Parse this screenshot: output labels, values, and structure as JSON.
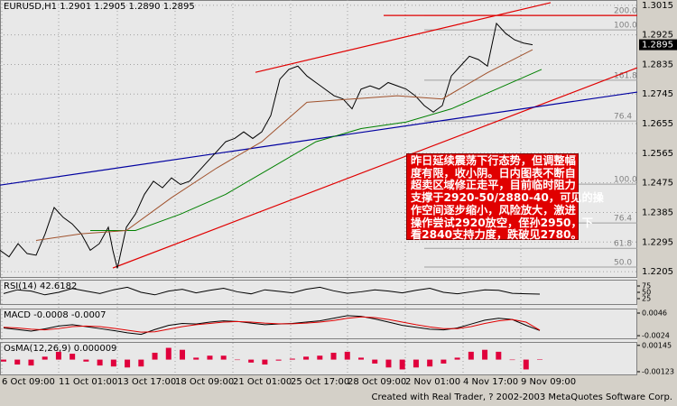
{
  "chart_data": [
    {
      "type": "line",
      "title": "EURUSD,H1  1.2901 1.2905 1.2890 1.2895",
      "current_price": 1.2895,
      "xlim": [
        0,
        706
      ],
      "ylim": [
        1.2186,
        1.3031
      ],
      "xticks": [
        {
          "value": 2,
          "label": "6 Oct 09:00"
        },
        {
          "value": 65,
          "label": "11 Oct 01:00"
        },
        {
          "value": 130,
          "label": "13 Oct 17:00"
        },
        {
          "value": 194,
          "label": "18 Oct 09:00"
        },
        {
          "value": 258,
          "label": "21 Oct 01:00"
        },
        {
          "value": 322,
          "label": "25 Oct 17:00"
        },
        {
          "value": 385,
          "label": "28 Oct 09:00"
        },
        {
          "value": 449,
          "label": "2 Nov 01:00"
        },
        {
          "value": 513,
          "label": "4 Nov 17:00"
        },
        {
          "value": 577,
          "label": "9 Nov 09:00"
        }
      ],
      "yticks": [
        1.3015,
        1.2925,
        1.2835,
        1.2745,
        1.2655,
        1.2565,
        1.2475,
        1.2385,
        1.2295,
        1.2205
      ],
      "grid": true,
      "series": [
        {
          "color": "#000000",
          "x": [
            0,
            10,
            20,
            30,
            40,
            50,
            60,
            70,
            80,
            90,
            100,
            110,
            120,
            125,
            130,
            140,
            150,
            160,
            170,
            180,
            190,
            200,
            210,
            220,
            230,
            240,
            250,
            260,
            270,
            280,
            290,
            300,
            310,
            320,
            330,
            340,
            350,
            360,
            370,
            380,
            390,
            400,
            410,
            420,
            430,
            440,
            450,
            460,
            470,
            480,
            490,
            500,
            510,
            520,
            530,
            540,
            550,
            560,
            570,
            580,
            590
          ],
          "values": [
            1.227,
            1.225,
            1.229,
            1.226,
            1.2255,
            1.232,
            1.24,
            1.237,
            1.235,
            1.232,
            1.227,
            1.229,
            1.234,
            1.227,
            1.2215,
            1.234,
            1.238,
            1.244,
            1.248,
            1.246,
            1.249,
            1.247,
            1.248,
            1.251,
            1.254,
            1.257,
            1.26,
            1.261,
            1.263,
            1.261,
            1.263,
            1.268,
            1.279,
            1.282,
            1.283,
            1.28,
            1.278,
            1.276,
            1.274,
            1.273,
            1.27,
            1.276,
            1.277,
            1.276,
            1.278,
            1.277,
            1.276,
            1.274,
            1.271,
            1.269,
            1.271,
            1.28,
            1.283,
            1.286,
            1.285,
            1.283,
            1.296,
            1.293,
            1.291,
            1.29,
            1.2895
          ]
        },
        {
          "color": "#008000",
          "x": [
            100,
            150,
            200,
            250,
            300,
            350,
            400,
            450,
            500,
            550,
            600
          ],
          "values": [
            1.233,
            1.233,
            1.238,
            1.244,
            1.252,
            1.26,
            1.264,
            1.266,
            1.27,
            1.276,
            1.282
          ]
        },
        {
          "color": "#a0522d",
          "x": [
            40,
            90,
            140,
            190,
            240,
            290,
            340,
            390,
            440,
            490,
            540,
            590
          ],
          "values": [
            1.23,
            1.232,
            1.233,
            1.243,
            1.252,
            1.26,
            1.272,
            1.273,
            1.274,
            1.273,
            1.281,
            1.288
          ]
        }
      ],
      "trendlines": [
        {
          "color": "#e00000",
          "x": [
            283,
            610
          ],
          "y": [
            1.2811,
            1.3023
          ]
        },
        {
          "color": "#e00000",
          "x": [
            125,
            706
          ],
          "y": [
            1.2216,
            1.2825
          ]
        },
        {
          "color": "#e00000",
          "x": [
            425,
            706
          ],
          "y": [
            1.2984,
            1.2984
          ]
        },
        {
          "color": "#0000a0",
          "x": [
            0,
            706
          ],
          "y": [
            1.2468,
            1.2751
          ]
        }
      ],
      "fib_levels": [
        {
          "label": "200.0",
          "price": 1.2984
        },
        {
          "label": "100.0",
          "price": 1.294
        },
        {
          "label": "161.8",
          "price": 1.2787
        },
        {
          "label": "76.4",
          "price": 1.2663
        },
        {
          "label": "100.0",
          "price": 1.2471
        },
        {
          "label": "76.4",
          "price": 1.2353
        },
        {
          "label": "61.8",
          "price": 1.2276
        },
        {
          "label": "50.0",
          "price": 1.2219
        }
      ]
    },
    {
      "type": "line",
      "title": "RSI(14)  42.6182",
      "ylim": [
        0,
        100
      ],
      "yticks": [
        75,
        50,
        25
      ],
      "series": [
        {
          "color": "#000000",
          "values": [
            45,
            60,
            55,
            40,
            50,
            65,
            55,
            45,
            60,
            70,
            50,
            40,
            55,
            62,
            48,
            58,
            66,
            52,
            44,
            60,
            54,
            48,
            62,
            70,
            56,
            46,
            52,
            60,
            55,
            48,
            58,
            66,
            50,
            44,
            52,
            60,
            58,
            46,
            44,
            43
          ]
        }
      ]
    },
    {
      "type": "line",
      "title": "MACD -0.0008 -0.0007",
      "ylim": [
        -0.0035,
        0.006
      ],
      "yticks": [
        0.0046,
        -0.0024
      ],
      "series": [
        {
          "color": "#000000",
          "values": [
            0,
            -0.0005,
            -0.001,
            -0.0003,
            0.0006,
            0.001,
            0.0004,
            -0.0002,
            -0.0008,
            -0.0015,
            -0.002,
            -0.0005,
            0.0008,
            0.0014,
            0.0012,
            0.0018,
            0.0022,
            0.002,
            0.0015,
            0.001,
            0.0012,
            0.0014,
            0.0018,
            0.0022,
            0.003,
            0.0038,
            0.0036,
            0.0028,
            0.0018,
            0.0008,
            0.0002,
            -0.0004,
            -0.0006,
            0,
            0.0012,
            0.0024,
            0.003,
            0.0026,
            0.0008,
            -0.0008
          ]
        },
        {
          "color": "#e00000",
          "values": [
            0.0002,
            0,
            -0.0004,
            -0.0006,
            -0.0002,
            0.0004,
            0.0006,
            0.0004,
            -0.0001,
            -0.0007,
            -0.0013,
            -0.0012,
            -0.0004,
            0.0004,
            0.001,
            0.0014,
            0.0018,
            0.002,
            0.0018,
            0.0015,
            0.0013,
            0.0013,
            0.0015,
            0.0018,
            0.0023,
            0.003,
            0.0034,
            0.0032,
            0.0026,
            0.0018,
            0.001,
            0.0003,
            -0.0002,
            -0.0002,
            0.0004,
            0.0014,
            0.0022,
            0.0026,
            0.0018,
            -0.0007
          ]
        }
      ]
    },
    {
      "type": "bar",
      "title": "OsMA(12,26,9)  0.000009",
      "ylim": [
        -0.0016,
        0.0018
      ],
      "yticks": [
        0.00145,
        -0.00123
      ],
      "color": "#e0003c",
      "values": [
        -0.0002,
        -0.0005,
        -0.0006,
        0.0003,
        0.0008,
        0.0006,
        -0.0002,
        -0.0006,
        -0.0007,
        -0.0008,
        -0.0007,
        0.0007,
        0.0012,
        0.001,
        0.0002,
        0.0004,
        0.0004,
        0,
        -0.0003,
        -0.0005,
        -0.0001,
        0.0001,
        0.0003,
        0.0004,
        0.0007,
        0.0008,
        0.0002,
        -0.0004,
        -0.0008,
        -0.001,
        -0.0008,
        -0.0007,
        -0.0004,
        0.0002,
        0.0008,
        0.001,
        0.0008,
        0,
        -0.001,
        9e-06
      ]
    }
  ],
  "note": [
    "昨日延续震荡下行态势，但调整幅",
    "度有限，收小阴。日内图表不断自",
    "超卖区域修正走平，目前临时阻力",
    "支撑于2920-50/2880-40，可见的操",
    "作空间逐步缩小，风险放大，激进",
    "操作尝试2920放空，侄孙2950，下",
    "看2840支持力度，跌破见2780。"
  ],
  "footer": "Created with Real Trader, ? 2002-2003 MetaQuotes Software Corp."
}
